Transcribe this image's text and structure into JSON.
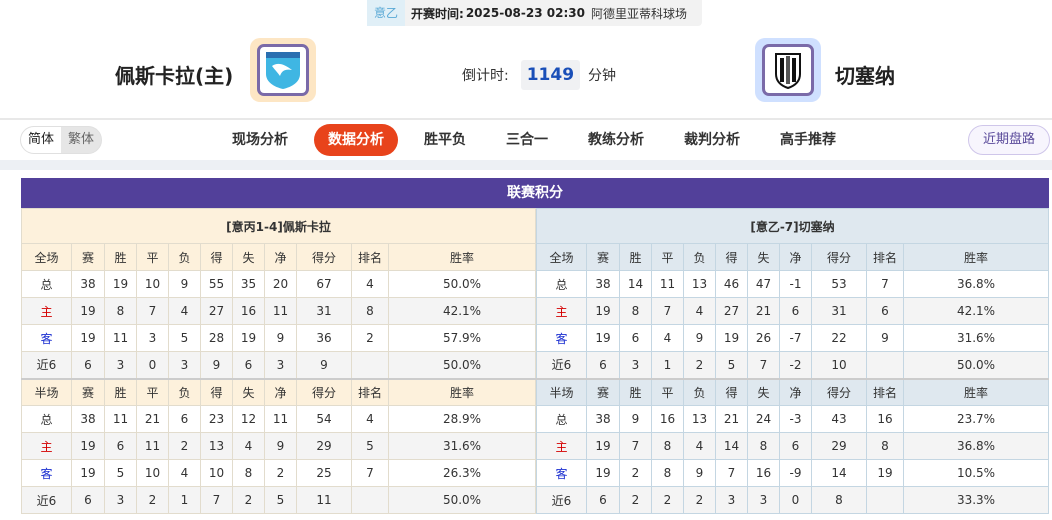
{
  "match": {
    "league": "意乙",
    "kickoff_label": "开赛时间:",
    "kickoff": "2025-08-23 02:30",
    "venue": "阿德里亚蒂科球场"
  },
  "home": {
    "name": "佩斯卡拉(主)",
    "logo_bg": "#fde6c4"
  },
  "away": {
    "name": "切塞纳",
    "logo_bg": "#cfe0ff"
  },
  "countdown": {
    "label": "倒计时:",
    "value": "1149",
    "unit": "分钟"
  },
  "lang": {
    "simplified": "简体",
    "traditional": "繁体"
  },
  "nav": {
    "tabs": [
      "现场分析",
      "数据分析",
      "胜平负",
      "三合一",
      "教练分析",
      "裁判分析",
      "高手推荐"
    ],
    "active": 1,
    "recent": "近期盘路"
  },
  "colors": {
    "accent": "#e8431b",
    "title_bar": "#52409a",
    "home_label": "#d40000",
    "away_label": "#1a2ed0"
  },
  "standings": {
    "title": "联赛积分",
    "columns": [
      "赛",
      "胜",
      "平",
      "负",
      "得",
      "失",
      "净",
      "得分",
      "排名",
      "胜率"
    ],
    "full_label": "全场",
    "half_label": "半场",
    "teams": [
      {
        "header": "[意丙1-4]佩斯卡拉",
        "full": [
          [
            "总",
            "38",
            "19",
            "10",
            "9",
            "55",
            "35",
            "20",
            "67",
            "4",
            "50.0%"
          ],
          [
            "主",
            "19",
            "8",
            "7",
            "4",
            "27",
            "16",
            "11",
            "31",
            "8",
            "42.1%"
          ],
          [
            "客",
            "19",
            "11",
            "3",
            "5",
            "28",
            "19",
            "9",
            "36",
            "2",
            "57.9%"
          ],
          [
            "近6",
            "6",
            "3",
            "0",
            "3",
            "9",
            "6",
            "3",
            "9",
            "",
            "50.0%"
          ]
        ],
        "half": [
          [
            "总",
            "38",
            "11",
            "21",
            "6",
            "23",
            "12",
            "11",
            "54",
            "4",
            "28.9%"
          ],
          [
            "主",
            "19",
            "6",
            "11",
            "2",
            "13",
            "4",
            "9",
            "29",
            "5",
            "31.6%"
          ],
          [
            "客",
            "19",
            "5",
            "10",
            "4",
            "10",
            "8",
            "2",
            "25",
            "7",
            "26.3%"
          ],
          [
            "近6",
            "6",
            "3",
            "2",
            "1",
            "7",
            "2",
            "5",
            "11",
            "",
            "50.0%"
          ]
        ]
      },
      {
        "header": "[意乙-7]切塞纳",
        "full": [
          [
            "总",
            "38",
            "14",
            "11",
            "13",
            "46",
            "47",
            "-1",
            "53",
            "7",
            "36.8%"
          ],
          [
            "主",
            "19",
            "8",
            "7",
            "4",
            "27",
            "21",
            "6",
            "31",
            "6",
            "42.1%"
          ],
          [
            "客",
            "19",
            "6",
            "4",
            "9",
            "19",
            "26",
            "-7",
            "22",
            "9",
            "31.6%"
          ],
          [
            "近6",
            "6",
            "3",
            "1",
            "2",
            "5",
            "7",
            "-2",
            "10",
            "",
            "50.0%"
          ]
        ],
        "half": [
          [
            "总",
            "38",
            "9",
            "16",
            "13",
            "21",
            "24",
            "-3",
            "43",
            "16",
            "23.7%"
          ],
          [
            "主",
            "19",
            "7",
            "8",
            "4",
            "14",
            "8",
            "6",
            "29",
            "8",
            "36.8%"
          ],
          [
            "客",
            "19",
            "2",
            "8",
            "9",
            "7",
            "16",
            "-9",
            "14",
            "19",
            "10.5%"
          ],
          [
            "近6",
            "6",
            "2",
            "2",
            "2",
            "3",
            "3",
            "0",
            "8",
            "",
            "33.3%"
          ]
        ]
      }
    ]
  }
}
